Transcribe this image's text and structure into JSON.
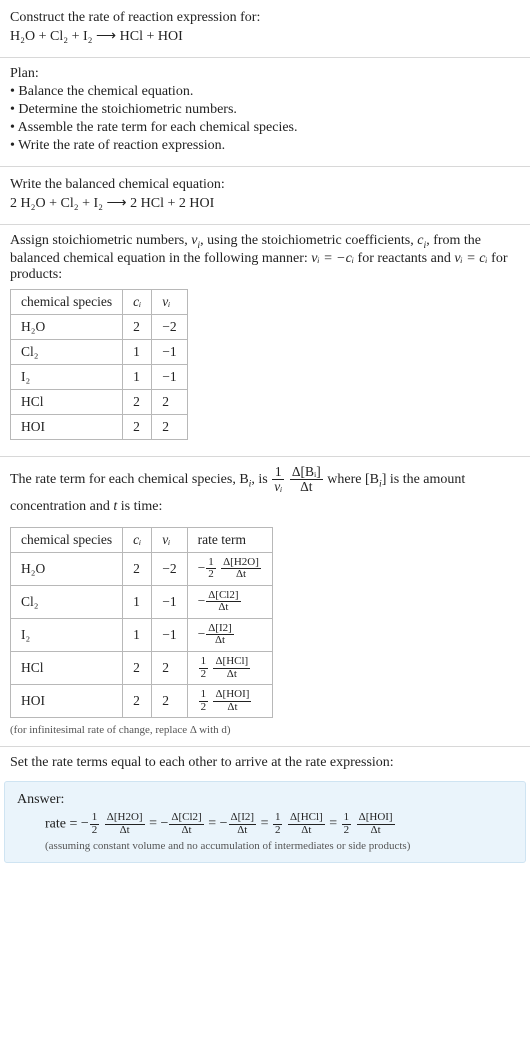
{
  "intro": {
    "line1": "Construct the rate of reaction expression for:",
    "line2": "H₂O + Cl₂ + I₂ ⟶ HCl + HOI"
  },
  "plan": {
    "title": "Plan:",
    "items": [
      "• Balance the chemical equation.",
      "• Determine the stoichiometric numbers.",
      "• Assemble the rate term for each chemical species.",
      "• Write the rate of reaction expression."
    ]
  },
  "balanced": {
    "line1": "Write the balanced chemical equation:",
    "line2": "2 H₂O + Cl₂ + I₂ ⟶ 2 HCl + 2 HOI"
  },
  "stoich_text": {
    "pre": "Assign stoichiometric numbers, ",
    "nu_i": "ν",
    "post1": ", using the stoichiometric coefficients, ",
    "c_i": "c",
    "post2": ", from the balanced chemical equation in the following manner: ",
    "rel_react": "νᵢ = −cᵢ",
    "mid": " for reactants and ",
    "rel_prod": "νᵢ = cᵢ",
    "post3": " for products:"
  },
  "stoich_table": {
    "headers": {
      "species": "chemical species",
      "c": "cᵢ",
      "nu": "νᵢ"
    },
    "rows": [
      {
        "species": "H₂O",
        "c": "2",
        "nu": "−2"
      },
      {
        "species": "Cl₂",
        "c": "1",
        "nu": "−1"
      },
      {
        "species": "I₂",
        "c": "1",
        "nu": "−1"
      },
      {
        "species": "HCl",
        "c": "2",
        "nu": "2"
      },
      {
        "species": "HOI",
        "c": "2",
        "nu": "2"
      }
    ]
  },
  "rate_text": {
    "pre": "The rate term for each chemical species, B",
    "post1": ", is ",
    "frac1_num": "1",
    "frac1_den": "νᵢ",
    "frac2_num": "Δ[Bᵢ]",
    "frac2_den": "Δt",
    "post2": " where [B",
    "post3": "] is the amount concentration and ",
    "t": "t",
    "post4": " is time:"
  },
  "rate_table": {
    "headers": {
      "species": "chemical species",
      "c": "cᵢ",
      "nu": "νᵢ",
      "term": "rate term"
    },
    "rows": [
      {
        "species": "H₂O",
        "c": "2",
        "nu": "−2",
        "sign": "−",
        "coef_num": "1",
        "coef_den": "2",
        "d_num": "Δ[H2O]",
        "d_den": "Δt"
      },
      {
        "species": "Cl₂",
        "c": "1",
        "nu": "−1",
        "sign": "−",
        "coef_num": "",
        "coef_den": "",
        "d_num": "Δ[Cl2]",
        "d_den": "Δt"
      },
      {
        "species": "I₂",
        "c": "1",
        "nu": "−1",
        "sign": "−",
        "coef_num": "",
        "coef_den": "",
        "d_num": "Δ[I2]",
        "d_den": "Δt"
      },
      {
        "species": "HCl",
        "c": "2",
        "nu": "2",
        "sign": "",
        "coef_num": "1",
        "coef_den": "2",
        "d_num": "Δ[HCl]",
        "d_den": "Δt"
      },
      {
        "species": "HOI",
        "c": "2",
        "nu": "2",
        "sign": "",
        "coef_num": "1",
        "coef_den": "2",
        "d_num": "Δ[HOI]",
        "d_den": "Δt"
      }
    ],
    "note": "(for infinitesimal rate of change, replace Δ with d)"
  },
  "final": {
    "intro": "Set the rate terms equal to each other to arrive at the rate expression:",
    "answer_label": "Answer:",
    "rate_label": "rate = ",
    "terms": [
      {
        "sign": "−",
        "coef_num": "1",
        "coef_den": "2",
        "d_num": "Δ[H2O]",
        "d_den": "Δt"
      },
      {
        "sign": "−",
        "coef_num": "",
        "coef_den": "",
        "d_num": "Δ[Cl2]",
        "d_den": "Δt"
      },
      {
        "sign": "−",
        "coef_num": "",
        "coef_den": "",
        "d_num": "Δ[I2]",
        "d_den": "Δt"
      },
      {
        "sign": "",
        "coef_num": "1",
        "coef_den": "2",
        "d_num": "Δ[HCl]",
        "d_den": "Δt"
      },
      {
        "sign": "",
        "coef_num": "1",
        "coef_den": "2",
        "d_num": "Δ[HOI]",
        "d_den": "Δt"
      }
    ],
    "note": "(assuming constant volume and no accumulation of intermediates or side products)"
  }
}
